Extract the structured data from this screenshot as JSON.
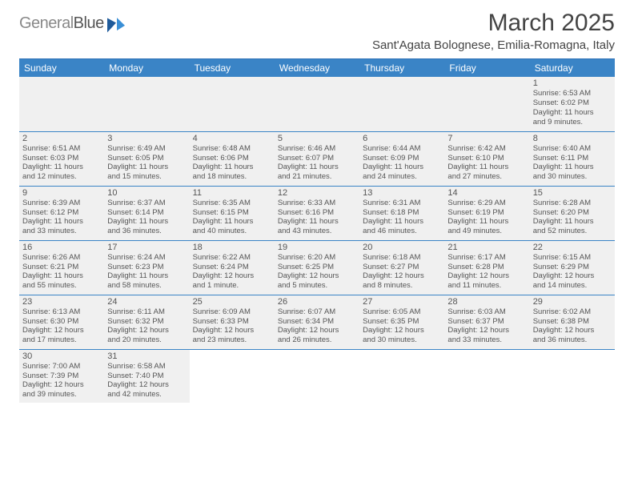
{
  "logo": {
    "part1": "General",
    "part2": "Blue"
  },
  "header": {
    "month_title": "March 2025",
    "location": "Sant'Agata Bolognese, Emilia-Romagna, Italy"
  },
  "daynames": [
    "Sunday",
    "Monday",
    "Tuesday",
    "Wednesday",
    "Thursday",
    "Friday",
    "Saturday"
  ],
  "weeks": [
    [
      null,
      null,
      null,
      null,
      null,
      null,
      {
        "n": "1",
        "sr": "Sunrise: 6:53 AM",
        "ss": "Sunset: 6:02 PM",
        "dl1": "Daylight: 11 hours",
        "dl2": "and 9 minutes."
      }
    ],
    [
      {
        "n": "2",
        "sr": "Sunrise: 6:51 AM",
        "ss": "Sunset: 6:03 PM",
        "dl1": "Daylight: 11 hours",
        "dl2": "and 12 minutes."
      },
      {
        "n": "3",
        "sr": "Sunrise: 6:49 AM",
        "ss": "Sunset: 6:05 PM",
        "dl1": "Daylight: 11 hours",
        "dl2": "and 15 minutes."
      },
      {
        "n": "4",
        "sr": "Sunrise: 6:48 AM",
        "ss": "Sunset: 6:06 PM",
        "dl1": "Daylight: 11 hours",
        "dl2": "and 18 minutes."
      },
      {
        "n": "5",
        "sr": "Sunrise: 6:46 AM",
        "ss": "Sunset: 6:07 PM",
        "dl1": "Daylight: 11 hours",
        "dl2": "and 21 minutes."
      },
      {
        "n": "6",
        "sr": "Sunrise: 6:44 AM",
        "ss": "Sunset: 6:09 PM",
        "dl1": "Daylight: 11 hours",
        "dl2": "and 24 minutes."
      },
      {
        "n": "7",
        "sr": "Sunrise: 6:42 AM",
        "ss": "Sunset: 6:10 PM",
        "dl1": "Daylight: 11 hours",
        "dl2": "and 27 minutes."
      },
      {
        "n": "8",
        "sr": "Sunrise: 6:40 AM",
        "ss": "Sunset: 6:11 PM",
        "dl1": "Daylight: 11 hours",
        "dl2": "and 30 minutes."
      }
    ],
    [
      {
        "n": "9",
        "sr": "Sunrise: 6:39 AM",
        "ss": "Sunset: 6:12 PM",
        "dl1": "Daylight: 11 hours",
        "dl2": "and 33 minutes."
      },
      {
        "n": "10",
        "sr": "Sunrise: 6:37 AM",
        "ss": "Sunset: 6:14 PM",
        "dl1": "Daylight: 11 hours",
        "dl2": "and 36 minutes."
      },
      {
        "n": "11",
        "sr": "Sunrise: 6:35 AM",
        "ss": "Sunset: 6:15 PM",
        "dl1": "Daylight: 11 hours",
        "dl2": "and 40 minutes."
      },
      {
        "n": "12",
        "sr": "Sunrise: 6:33 AM",
        "ss": "Sunset: 6:16 PM",
        "dl1": "Daylight: 11 hours",
        "dl2": "and 43 minutes."
      },
      {
        "n": "13",
        "sr": "Sunrise: 6:31 AM",
        "ss": "Sunset: 6:18 PM",
        "dl1": "Daylight: 11 hours",
        "dl2": "and 46 minutes."
      },
      {
        "n": "14",
        "sr": "Sunrise: 6:29 AM",
        "ss": "Sunset: 6:19 PM",
        "dl1": "Daylight: 11 hours",
        "dl2": "and 49 minutes."
      },
      {
        "n": "15",
        "sr": "Sunrise: 6:28 AM",
        "ss": "Sunset: 6:20 PM",
        "dl1": "Daylight: 11 hours",
        "dl2": "and 52 minutes."
      }
    ],
    [
      {
        "n": "16",
        "sr": "Sunrise: 6:26 AM",
        "ss": "Sunset: 6:21 PM",
        "dl1": "Daylight: 11 hours",
        "dl2": "and 55 minutes."
      },
      {
        "n": "17",
        "sr": "Sunrise: 6:24 AM",
        "ss": "Sunset: 6:23 PM",
        "dl1": "Daylight: 11 hours",
        "dl2": "and 58 minutes."
      },
      {
        "n": "18",
        "sr": "Sunrise: 6:22 AM",
        "ss": "Sunset: 6:24 PM",
        "dl1": "Daylight: 12 hours",
        "dl2": "and 1 minute."
      },
      {
        "n": "19",
        "sr": "Sunrise: 6:20 AM",
        "ss": "Sunset: 6:25 PM",
        "dl1": "Daylight: 12 hours",
        "dl2": "and 5 minutes."
      },
      {
        "n": "20",
        "sr": "Sunrise: 6:18 AM",
        "ss": "Sunset: 6:27 PM",
        "dl1": "Daylight: 12 hours",
        "dl2": "and 8 minutes."
      },
      {
        "n": "21",
        "sr": "Sunrise: 6:17 AM",
        "ss": "Sunset: 6:28 PM",
        "dl1": "Daylight: 12 hours",
        "dl2": "and 11 minutes."
      },
      {
        "n": "22",
        "sr": "Sunrise: 6:15 AM",
        "ss": "Sunset: 6:29 PM",
        "dl1": "Daylight: 12 hours",
        "dl2": "and 14 minutes."
      }
    ],
    [
      {
        "n": "23",
        "sr": "Sunrise: 6:13 AM",
        "ss": "Sunset: 6:30 PM",
        "dl1": "Daylight: 12 hours",
        "dl2": "and 17 minutes."
      },
      {
        "n": "24",
        "sr": "Sunrise: 6:11 AM",
        "ss": "Sunset: 6:32 PM",
        "dl1": "Daylight: 12 hours",
        "dl2": "and 20 minutes."
      },
      {
        "n": "25",
        "sr": "Sunrise: 6:09 AM",
        "ss": "Sunset: 6:33 PM",
        "dl1": "Daylight: 12 hours",
        "dl2": "and 23 minutes."
      },
      {
        "n": "26",
        "sr": "Sunrise: 6:07 AM",
        "ss": "Sunset: 6:34 PM",
        "dl1": "Daylight: 12 hours",
        "dl2": "and 26 minutes."
      },
      {
        "n": "27",
        "sr": "Sunrise: 6:05 AM",
        "ss": "Sunset: 6:35 PM",
        "dl1": "Daylight: 12 hours",
        "dl2": "and 30 minutes."
      },
      {
        "n": "28",
        "sr": "Sunrise: 6:03 AM",
        "ss": "Sunset: 6:37 PM",
        "dl1": "Daylight: 12 hours",
        "dl2": "and 33 minutes."
      },
      {
        "n": "29",
        "sr": "Sunrise: 6:02 AM",
        "ss": "Sunset: 6:38 PM",
        "dl1": "Daylight: 12 hours",
        "dl2": "and 36 minutes."
      }
    ],
    [
      {
        "n": "30",
        "sr": "Sunrise: 7:00 AM",
        "ss": "Sunset: 7:39 PM",
        "dl1": "Daylight: 12 hours",
        "dl2": "and 39 minutes."
      },
      {
        "n": "31",
        "sr": "Sunrise: 6:58 AM",
        "ss": "Sunset: 7:40 PM",
        "dl1": "Daylight: 12 hours",
        "dl2": "and 42 minutes."
      },
      null,
      null,
      null,
      null,
      null
    ]
  ],
  "colors": {
    "header_bg": "#3a84c6",
    "border": "#3a84c6",
    "shade": "#f0f0f0"
  }
}
